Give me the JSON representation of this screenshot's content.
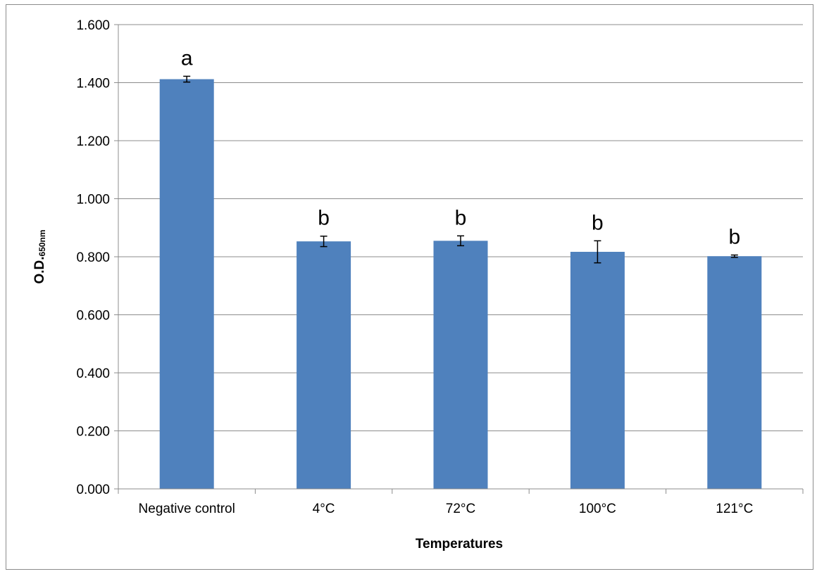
{
  "chart_data": {
    "type": "bar",
    "categories": [
      "Negative control",
      "4°C",
      "72°C",
      "100°C",
      "121°C"
    ],
    "series": [
      {
        "values": [
          1.412,
          0.853,
          0.855,
          0.817,
          0.802
        ],
        "errors": [
          0.01,
          0.018,
          0.017,
          0.038,
          0.004
        ],
        "letters": [
          "a",
          "b",
          "b",
          "b",
          "b"
        ],
        "color": "#4f81bd"
      }
    ],
    "title": "",
    "xlabel": "Temperatures",
    "ylabel": {
      "main": "O.D.",
      "sub": "650nm"
    },
    "ylim": [
      0,
      1.6
    ],
    "yticks": [
      "0.000",
      "0.200",
      "0.400",
      "0.600",
      "0.800",
      "1.000",
      "1.200",
      "1.400",
      "1.600"
    ],
    "grid": true,
    "legend": "none"
  }
}
